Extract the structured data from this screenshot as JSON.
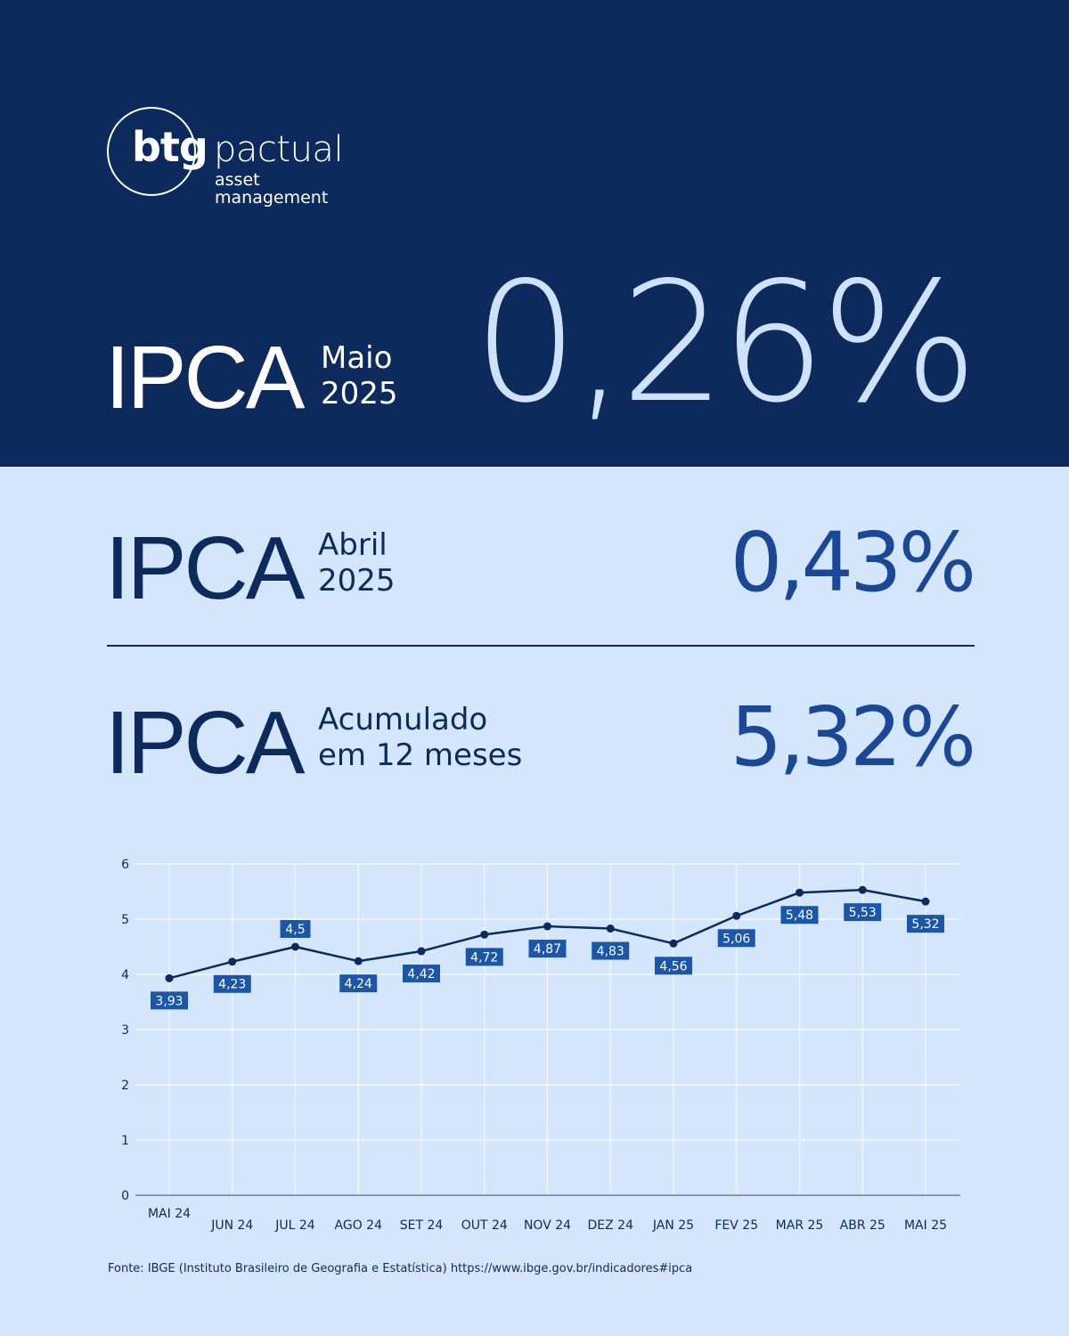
{
  "brand": {
    "logo_main": "btg",
    "logo_word": "pactual",
    "logo_line1": "asset",
    "logo_line2": "management"
  },
  "header": {
    "label": "IPCA",
    "period_line1": "Maio",
    "period_line2": "2025",
    "value": "0,26%"
  },
  "row_previous": {
    "label": "IPCA",
    "period_line1": "Abril",
    "period_line2": "2025",
    "value": "0,43%"
  },
  "row_accumulated": {
    "label": "IPCA",
    "period_line1": "Acumulado",
    "period_line2": "em 12 meses",
    "value": "5,32%"
  },
  "colors": {
    "navy": "#0d2a5c",
    "light_bg": "#d3e6fc",
    "accent_blue": "#1b4896",
    "label_box": "#1c56a8"
  },
  "chart_data": {
    "type": "line",
    "categories": [
      "MAI 24",
      "JUN 24",
      "JUL 24",
      "AGO 24",
      "SET 24",
      "OUT 24",
      "NOV 24",
      "DEZ 24",
      "JAN 25",
      "FEV 25",
      "MAR 25",
      "ABR 25",
      "MAI 25"
    ],
    "values": [
      3.93,
      4.23,
      4.5,
      4.24,
      4.42,
      4.72,
      4.87,
      4.83,
      4.56,
      5.06,
      5.48,
      5.53,
      5.32
    ],
    "data_labels": [
      "3,93",
      "4,23",
      "4,5",
      "4,24",
      "4,42",
      "4,72",
      "4,87",
      "4,83",
      "4,56",
      "5,06",
      "5,48",
      "5,53",
      "5,32"
    ],
    "label_position": [
      "below",
      "below",
      "above",
      "below",
      "below",
      "below",
      "below",
      "below",
      "below",
      "below",
      "below",
      "below",
      "below"
    ],
    "yticks": [
      "0",
      "1",
      "2",
      "3",
      "4",
      "5",
      "6"
    ],
    "ylim": [
      0,
      6
    ],
    "grid": true,
    "xlabel": "",
    "ylabel": "",
    "title": ""
  },
  "footer": {
    "source": "Fonte: IBGE (Instituto Brasileiro de Geografia e Estatística) https://www.ibge.gov.br/indicadores#ipca"
  }
}
